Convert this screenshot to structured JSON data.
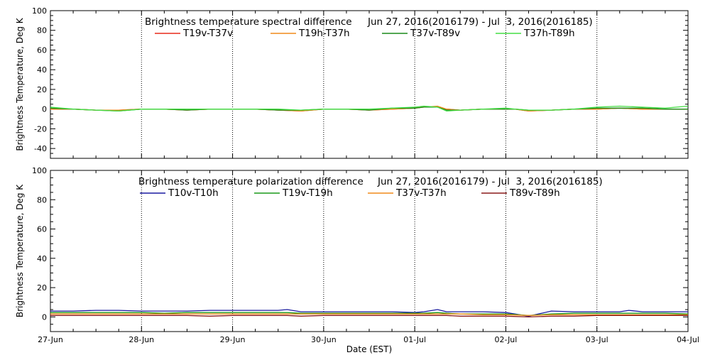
{
  "chart_data": [
    {
      "type": "line",
      "title": "Brightness temperature spectral difference",
      "date_range": "Jun 27, 2016(2016179) - Jul  3, 2016(2016185)",
      "xlabel": "",
      "ylabel": "Brightness Temperature, Deg K",
      "xlim": [
        0,
        7
      ],
      "ylim": [
        -50,
        100
      ],
      "yticks": [
        -40,
        -20,
        0,
        20,
        40,
        60,
        80,
        100
      ],
      "xticks": [
        0,
        1,
        2,
        3,
        4,
        5,
        6,
        7
      ],
      "xtick_labels": [
        "27-Jun",
        "28-Jun",
        "29-Jun",
        "30-Jun",
        "01-Jul",
        "02-Jul",
        "03-Jul",
        "04-Jul"
      ],
      "show_xtick_labels": false,
      "grid": "vertical-dotted",
      "x": [
        0,
        0.25,
        0.5,
        0.75,
        1,
        1.25,
        1.5,
        1.75,
        2,
        2.25,
        2.5,
        2.75,
        3,
        3.25,
        3.5,
        3.75,
        4,
        4.1,
        4.25,
        4.35,
        4.5,
        4.75,
        5,
        5.1,
        5.25,
        5.5,
        5.75,
        6,
        6.25,
        6.5,
        6.75,
        7
      ],
      "series": [
        {
          "name": "T19v-T37v",
          "color": "#e82a1a",
          "values": [
            0,
            0,
            -1,
            -1,
            0,
            0,
            -1,
            0,
            0,
            0,
            -1,
            -2,
            0,
            0,
            -1,
            0,
            1,
            2,
            2,
            0,
            -1,
            0,
            0,
            0,
            -2,
            -1,
            0,
            0,
            1,
            0,
            0,
            0
          ]
        },
        {
          "name": "T19h-T37h",
          "color": "#f08a1a",
          "values": [
            0,
            0,
            -1,
            -1,
            0,
            0,
            -1,
            0,
            0,
            0,
            -1,
            -2,
            0,
            0,
            -1,
            0,
            1,
            2,
            3,
            0,
            -1,
            0,
            0,
            0,
            -2,
            -1,
            0,
            0,
            1,
            0,
            0,
            0
          ]
        },
        {
          "name": "T37v-T89v",
          "color": "#1a8a1a",
          "values": [
            1,
            0,
            -1,
            -2,
            0,
            0,
            -1,
            0,
            0,
            0,
            -1,
            -1,
            0,
            0,
            -1,
            1,
            1,
            2,
            2,
            -1,
            -1,
            0,
            0,
            0,
            -1,
            -1,
            0,
            1,
            1,
            1,
            0,
            0
          ]
        },
        {
          "name": "T37h-T89h",
          "color": "#44dd44",
          "values": [
            2,
            0,
            -1,
            -2,
            0,
            0,
            0,
            0,
            0,
            0,
            0,
            -1,
            0,
            0,
            0,
            1,
            2,
            3,
            2,
            -2,
            -1,
            0,
            1,
            0,
            -1,
            -1,
            0,
            2,
            3,
            2,
            1,
            3
          ]
        }
      ]
    },
    {
      "type": "line",
      "title": "Brightness temperature polarization difference",
      "date_range": "Jun 27, 2016(2016179) - Jul  3, 2016(2016185)",
      "xlabel": "Date (EST)",
      "ylabel": "Brightness Temperature, Deg K",
      "xlim": [
        0,
        7
      ],
      "ylim": [
        -10,
        100
      ],
      "yticks": [
        0,
        20,
        40,
        60,
        80,
        100
      ],
      "xticks": [
        0,
        1,
        2,
        3,
        4,
        5,
        6,
        7
      ],
      "xtick_labels": [
        "27-Jun",
        "28-Jun",
        "29-Jun",
        "30-Jun",
        "01-Jul",
        "02-Jul",
        "03-Jul",
        "04-Jul"
      ],
      "show_xtick_labels": true,
      "grid": "vertical-dotted",
      "x": [
        0,
        0.25,
        0.5,
        0.75,
        1,
        1.25,
        1.5,
        1.75,
        2,
        2.25,
        2.5,
        2.6,
        2.75,
        3,
        3.25,
        3.5,
        3.75,
        4,
        4.1,
        4.25,
        4.35,
        4.5,
        4.75,
        5,
        5.25,
        5.5,
        5.75,
        6,
        6.25,
        6.35,
        6.5,
        6.75,
        7
      ],
      "series": [
        {
          "name": "T10v-T10h",
          "color": "#1a1aa0",
          "values": [
            4,
            4,
            4.5,
            4.5,
            4,
            4,
            4,
            4.5,
            4.5,
            4.5,
            4.5,
            5,
            3.5,
            3.5,
            3.5,
            3.5,
            3.5,
            3,
            3.5,
            5,
            3.5,
            3.5,
            3.5,
            3,
            0.5,
            4,
            3.5,
            3.5,
            3.5,
            4.5,
            3.5,
            3.5,
            3.5
          ]
        },
        {
          "name": "T19v-T19h",
          "color": "#1a9a1a",
          "values": [
            3,
            3,
            3,
            3,
            3,
            2.5,
            3,
            3,
            3,
            3,
            3,
            3,
            2.5,
            2.5,
            2.5,
            2.5,
            2.5,
            2.5,
            2.5,
            3,
            2.5,
            2,
            2,
            2,
            1,
            2,
            2.5,
            2.5,
            2.5,
            2.5,
            2.5,
            2.5,
            2
          ]
        },
        {
          "name": "T37v-T37h",
          "color": "#f08a1a",
          "values": [
            2,
            2,
            2,
            2,
            2,
            2,
            2,
            2,
            2,
            2,
            2,
            2,
            2,
            2,
            2,
            2,
            2,
            2,
            2,
            2,
            2,
            2,
            1.5,
            1.5,
            1,
            1.5,
            1.5,
            1.5,
            1.5,
            1.5,
            1.5,
            1.5,
            1.5
          ]
        },
        {
          "name": "T89v-T89h",
          "color": "#8a1a1a",
          "values": [
            1,
            1,
            1,
            1,
            1,
            1,
            1,
            0.5,
            1,
            1,
            1,
            1,
            0.5,
            1,
            1,
            1,
            1,
            1,
            1,
            1,
            1,
            0.5,
            0.5,
            0.5,
            0,
            0.5,
            0.5,
            1,
            1,
            1,
            1,
            1,
            1
          ]
        }
      ]
    }
  ]
}
